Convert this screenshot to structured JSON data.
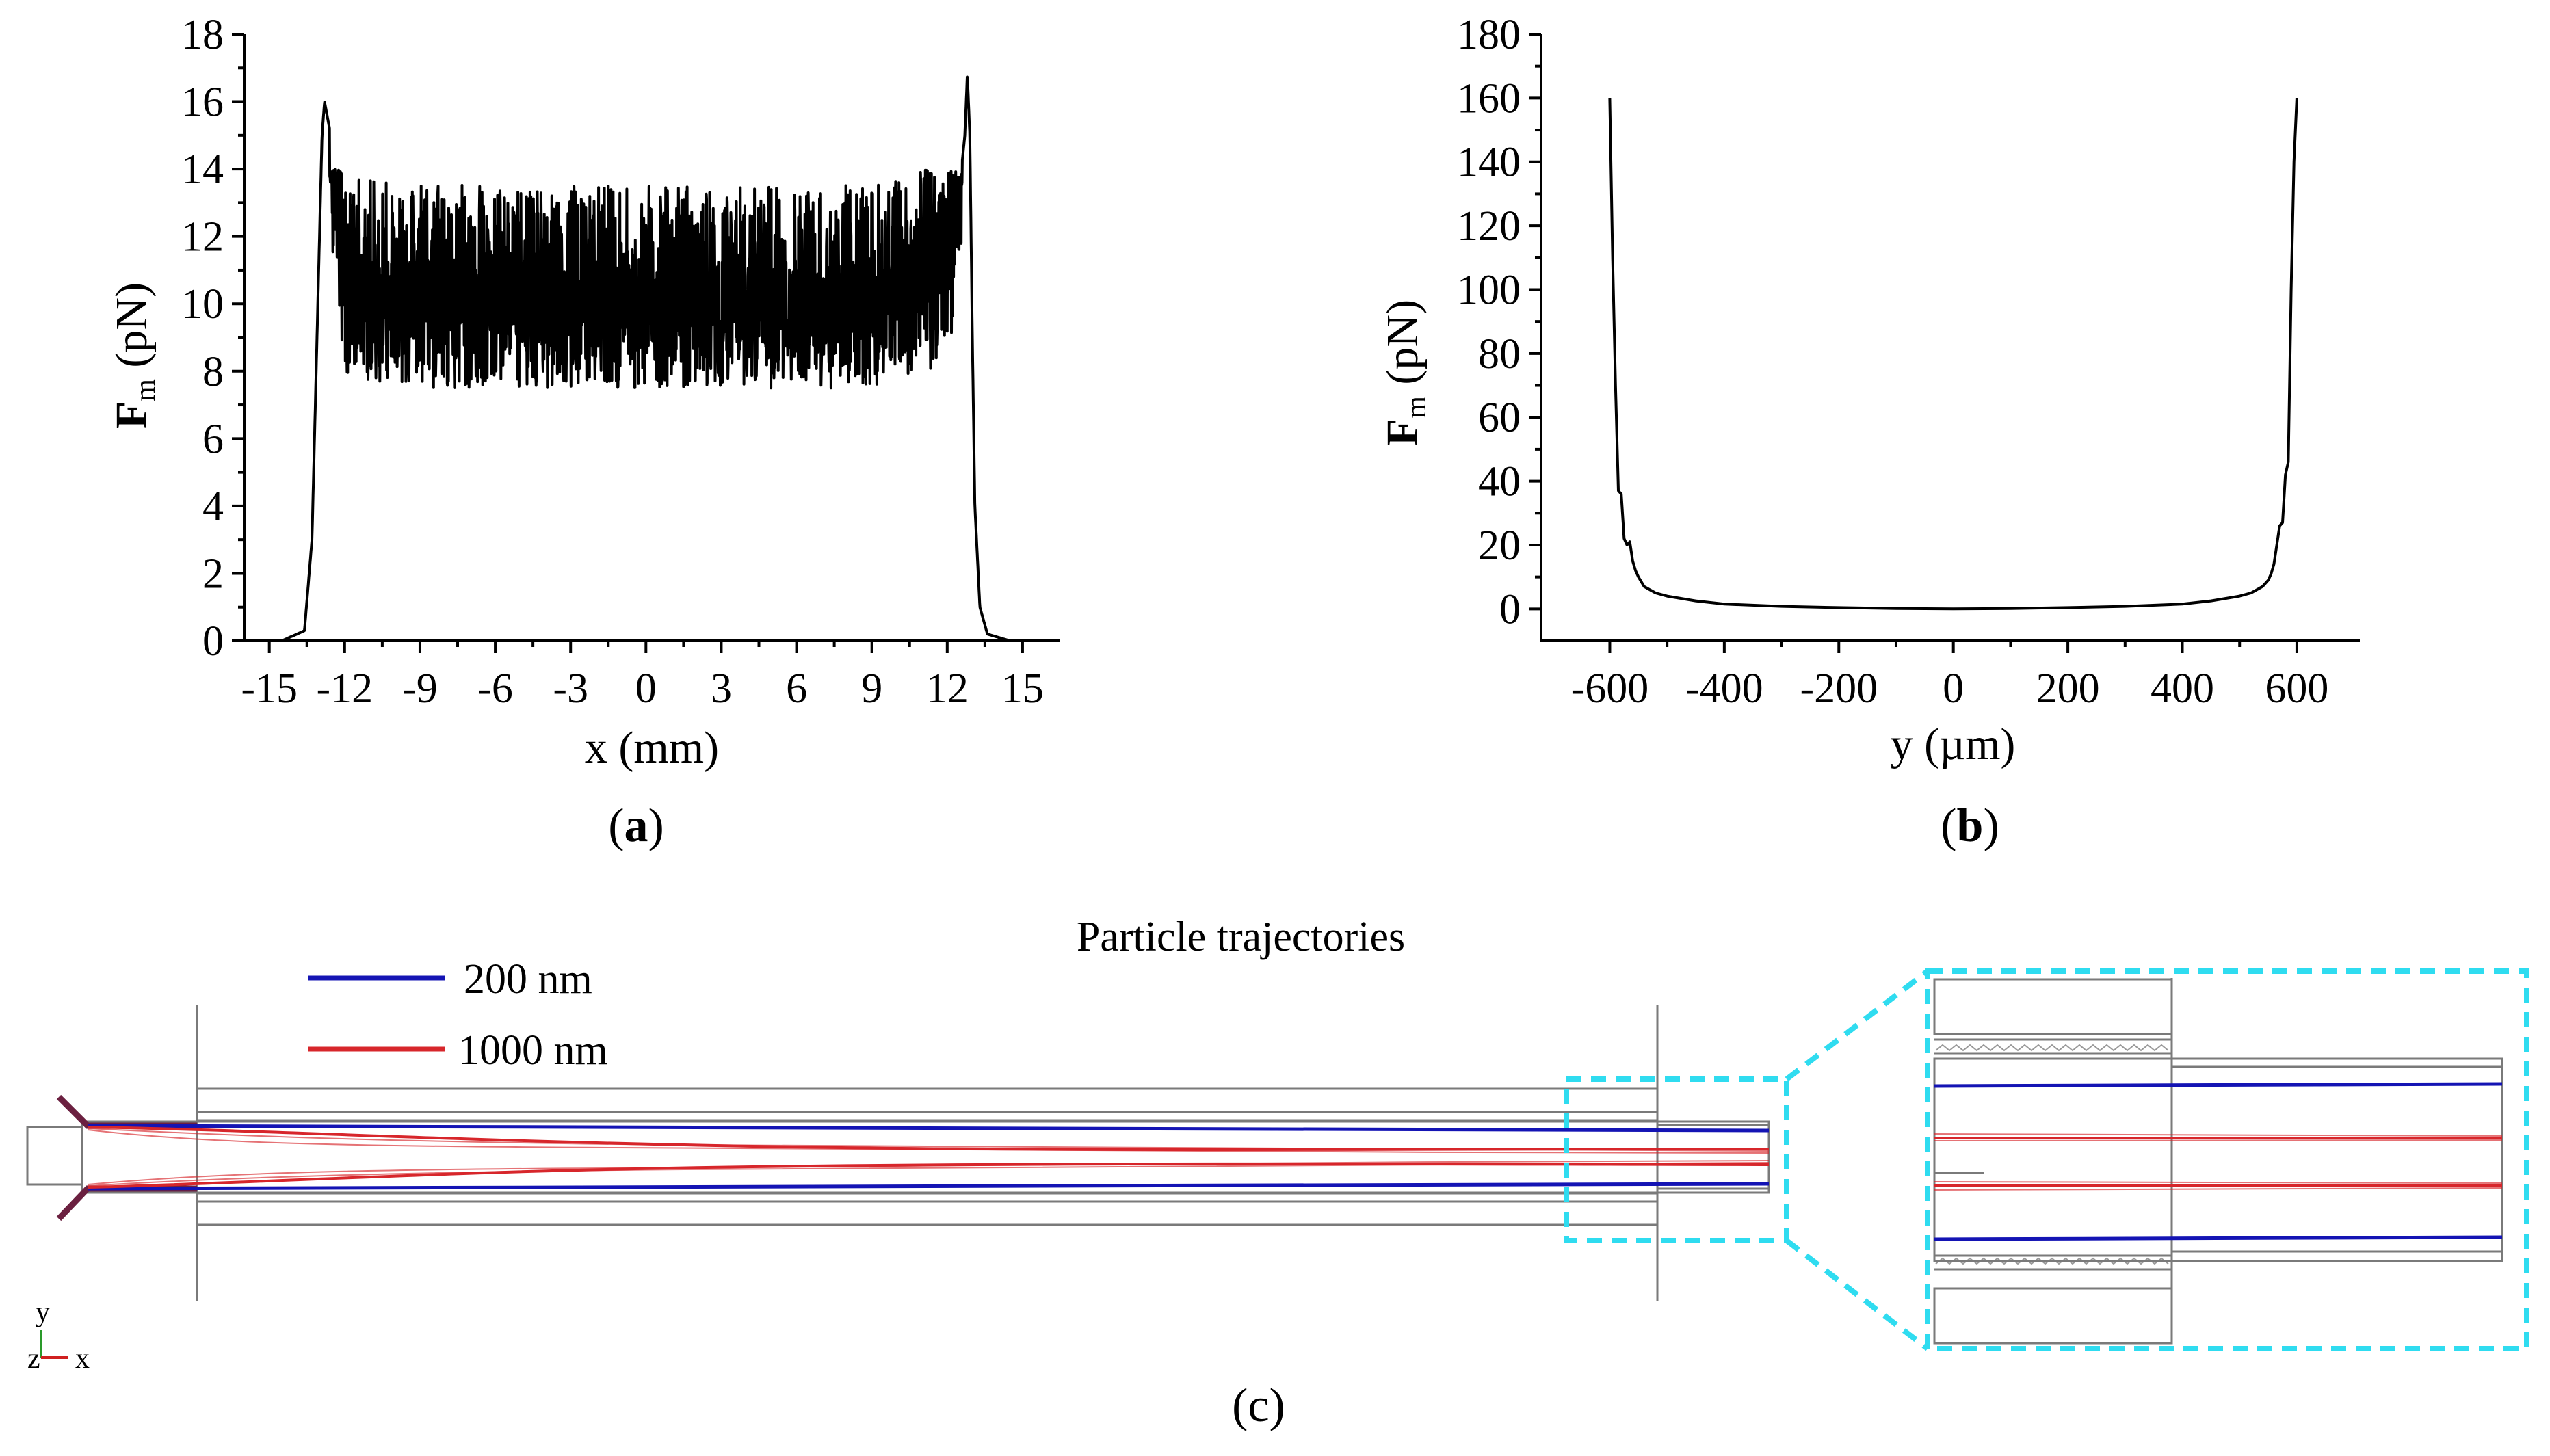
{
  "chart_data": [
    {
      "type": "line",
      "panel": "(a)",
      "panel_letter": "a",
      "ylabel_bold": "F",
      "ylabel_sub": "m",
      "ylabel_rest": " (pN)",
      "xlabel": "x (mm)",
      "xlim": [
        -16,
        16.5
      ],
      "ylim": [
        0,
        18
      ],
      "x_ticks": [
        -15,
        -12,
        -9,
        -6,
        -3,
        0,
        3,
        6,
        9,
        12,
        15
      ],
      "y_ticks": [
        0,
        2,
        4,
        6,
        8,
        10,
        12,
        14,
        16,
        18
      ],
      "series": [
        {
          "color": "#000000",
          "noise": "dense oscillation between about 7.5 and 14 pN on the plateau",
          "x": [
            -14.5,
            -13.6,
            -13.3,
            -13.1,
            -12.9,
            -12.8,
            -12.6,
            -12.4,
            -12.2,
            -12.0,
            -11.0,
            -9.0,
            -6.0,
            -3.0,
            0.0,
            3.0,
            6.0,
            9.0,
            11.0,
            12.0,
            12.3,
            12.5,
            12.7,
            12.8,
            12.9,
            13.0,
            13.1,
            13.3,
            13.6,
            14.5
          ],
          "y": [
            0.0,
            0.3,
            3.0,
            9.0,
            15.0,
            16.0,
            15.2,
            13.0,
            11.5,
            10.5,
            10.2,
            10.0,
            10.0,
            10.0,
            10.0,
            10.0,
            10.0,
            10.1,
            10.4,
            11.0,
            12.0,
            13.5,
            15.0,
            16.8,
            15.0,
            9.0,
            4.0,
            1.0,
            0.2,
            0.0
          ]
        }
      ]
    },
    {
      "type": "line",
      "panel": "(b)",
      "panel_letter": "b",
      "ylabel_bold": "F",
      "ylabel_sub": "m",
      "ylabel_rest": " (pN)",
      "xlabel": "y (µm)",
      "xlim": [
        -720,
        710
      ],
      "ylim": [
        -10,
        180
      ],
      "x_ticks": [
        -600,
        -400,
        -200,
        0,
        200,
        400,
        600
      ],
      "y_ticks": [
        0,
        20,
        40,
        60,
        80,
        100,
        120,
        140,
        160,
        180
      ],
      "series": [
        {
          "color": "#000000",
          "x": [
            -600,
            -595,
            -590,
            -585,
            -580,
            -575,
            -570,
            -565,
            -560,
            -555,
            -550,
            -540,
            -520,
            -500,
            -450,
            -400,
            -300,
            -200,
            -100,
            0,
            100,
            200,
            300,
            400,
            450,
            500,
            520,
            540,
            550,
            555,
            560,
            565,
            570,
            575,
            580,
            585,
            590,
            595,
            600
          ],
          "y": [
            160,
            110,
            70,
            37,
            36,
            22,
            20,
            21,
            15,
            12,
            10,
            7,
            5,
            4,
            2.5,
            1.5,
            0.8,
            0.4,
            0.1,
            0,
            0.1,
            0.4,
            0.8,
            1.5,
            2.5,
            4,
            5,
            7,
            9,
            11,
            14,
            20,
            26,
            27,
            42,
            46,
            100,
            140,
            160
          ]
        }
      ]
    }
  ],
  "panel_c": {
    "panel": "(c)",
    "title": "Particle trajectories",
    "legend": [
      {
        "label": "200 nm",
        "color": "#1414b4"
      },
      {
        "label": "1000 nm",
        "color": "#d7262b"
      }
    ],
    "axis_triad": {
      "y": "y",
      "z": "z",
      "x": "x"
    },
    "zoom_box_color": "#2fdcf0"
  }
}
